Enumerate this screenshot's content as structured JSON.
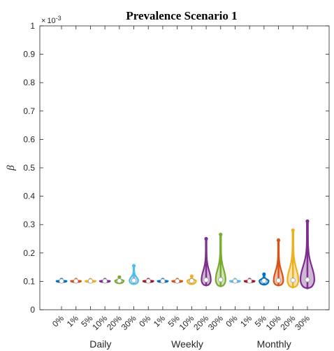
{
  "chart_data": {
    "type": "violin",
    "title": "Prevalence Scenario 1",
    "ylabel": "β",
    "y_multiplier": "× 10-3",
    "y_multiplier_parts": {
      "times": "×",
      "base": "10",
      "exponent": "-3"
    },
    "ylim": [
      0,
      1
    ],
    "yticks": [
      "0",
      "0.1",
      "0.2",
      "0.3",
      "0.4",
      "0.5",
      "0.6",
      "0.7",
      "0.8",
      "0.9",
      "1"
    ],
    "categories": [
      "0%",
      "1%",
      "5%",
      "10%",
      "20%",
      "30%",
      "0%",
      "1%",
      "5%",
      "10%",
      "20%",
      "30%",
      "0%",
      "1%",
      "5%",
      "10%",
      "20%",
      "30%"
    ],
    "groups": [
      {
        "label": "Daily",
        "start": 0,
        "end": 5
      },
      {
        "label": "Weekly",
        "start": 6,
        "end": 11
      },
      {
        "label": "Monthly",
        "start": 12,
        "end": 17
      }
    ],
    "colors": [
      "#0072BD",
      "#D95319",
      "#EDB120",
      "#7E2F8E",
      "#77AC30",
      "#4DBEEE",
      "#A2142F"
    ],
    "violins": [
      {
        "median": 0.101,
        "min": 0.097,
        "max": 0.106,
        "width": 0.35,
        "color": "#0072BD"
      },
      {
        "median": 0.101,
        "min": 0.097,
        "max": 0.106,
        "width": 0.35,
        "color": "#D95319"
      },
      {
        "median": 0.101,
        "min": 0.097,
        "max": 0.106,
        "width": 0.35,
        "color": "#EDB120"
      },
      {
        "median": 0.101,
        "min": 0.097,
        "max": 0.106,
        "width": 0.35,
        "color": "#7E2F8E"
      },
      {
        "median": 0.102,
        "min": 0.093,
        "max": 0.115,
        "width": 0.3,
        "color": "#77AC30"
      },
      {
        "median": 0.103,
        "min": 0.09,
        "max": 0.155,
        "width": 0.3,
        "color": "#4DBEEE"
      },
      {
        "median": 0.101,
        "min": 0.097,
        "max": 0.106,
        "width": 0.35,
        "color": "#A2142F"
      },
      {
        "median": 0.101,
        "min": 0.097,
        "max": 0.106,
        "width": 0.35,
        "color": "#0072BD"
      },
      {
        "median": 0.101,
        "min": 0.097,
        "max": 0.106,
        "width": 0.35,
        "color": "#D95319"
      },
      {
        "median": 0.102,
        "min": 0.09,
        "max": 0.118,
        "width": 0.3,
        "color": "#EDB120"
      },
      {
        "median": 0.105,
        "min": 0.085,
        "max": 0.25,
        "width": 0.32,
        "color": "#7E2F8E"
      },
      {
        "median": 0.106,
        "min": 0.082,
        "max": 0.265,
        "width": 0.34,
        "color": "#77AC30"
      },
      {
        "median": 0.101,
        "min": 0.097,
        "max": 0.106,
        "width": 0.35,
        "color": "#4DBEEE"
      },
      {
        "median": 0.101,
        "min": 0.097,
        "max": 0.106,
        "width": 0.35,
        "color": "#A2142F"
      },
      {
        "median": 0.102,
        "min": 0.088,
        "max": 0.125,
        "width": 0.32,
        "color": "#0072BD"
      },
      {
        "median": 0.103,
        "min": 0.085,
        "max": 0.245,
        "width": 0.33,
        "color": "#D95319"
      },
      {
        "median": 0.104,
        "min": 0.078,
        "max": 0.28,
        "width": 0.38,
        "color": "#EDB120"
      },
      {
        "median": 0.106,
        "min": 0.075,
        "max": 0.312,
        "width": 0.48,
        "color": "#7E2F8E"
      }
    ]
  }
}
